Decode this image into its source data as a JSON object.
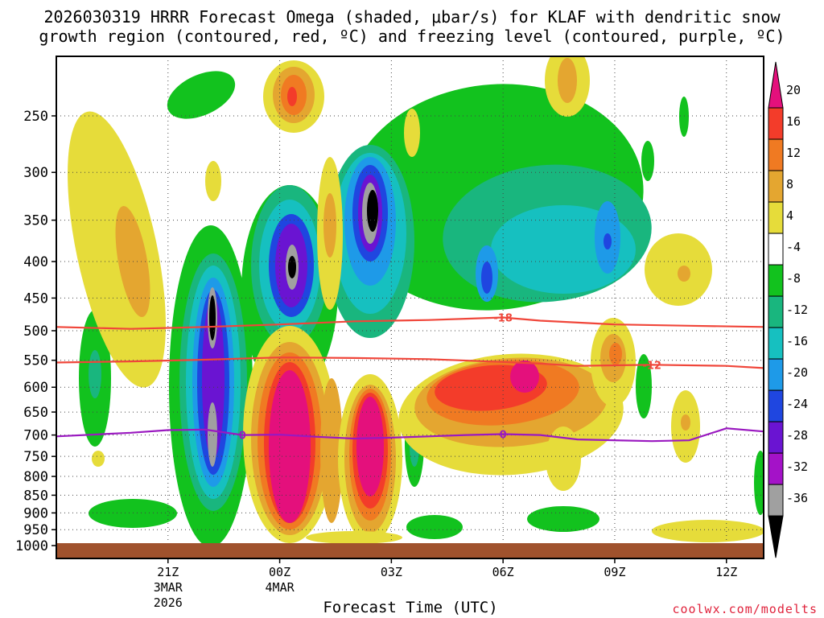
{
  "title": {
    "line1": "2026030319 HRRR Forecast Omega (shaded, μbar/s) for KLAF with dendritic snow",
    "line2": "growth region (contoured, red, ºC) and freezing level (contoured, purple, ºC)"
  },
  "x_axis_title": "Forecast Time (UTC)",
  "credit": "coolwx.com/modelts",
  "chart_data": {
    "type": "heatmap",
    "x_ticks": [
      {
        "label": "21Z",
        "sub1": "3MAR",
        "sub2": "2026",
        "hour": 21
      },
      {
        "label": "00Z",
        "sub1": "4MAR",
        "sub2": "",
        "hour": 24
      },
      {
        "label": "03Z",
        "sub1": "",
        "sub2": "",
        "hour": 27
      },
      {
        "label": "06Z",
        "sub1": "",
        "sub2": "",
        "hour": 30
      },
      {
        "label": "09Z",
        "sub1": "",
        "sub2": "",
        "hour": 33
      },
      {
        "label": "12Z",
        "sub1": "",
        "sub2": "",
        "hour": 36
      }
    ],
    "x_range_hours": [
      18,
      37
    ],
    "y_ticks": [
      "250",
      "300",
      "350",
      "400",
      "450",
      "500",
      "550",
      "600",
      "650",
      "700",
      "750",
      "800",
      "850",
      "900",
      "950",
      "1000"
    ],
    "y_range_hpa": [
      1000,
      200
    ],
    "colorbar": {
      "labels": [
        "20",
        "16",
        "12",
        "8",
        "4",
        "-4",
        "-8",
        "-12",
        "-16",
        "-20",
        "-24",
        "-28",
        "-32",
        "-36"
      ],
      "colors": [
        "#e4107c",
        "#f33c2a",
        "#f07a22",
        "#e4a630",
        "#e6dc3a",
        "#ffffff",
        "#12c21e",
        "#19b67e",
        "#16c0c0",
        "#1e9ae8",
        "#1f46e0",
        "#6a14d2",
        "#a412c8",
        "#a0a0a0",
        "#000000"
      ]
    },
    "contours": [
      {
        "label": "-18",
        "color": "#f0463a",
        "points": [
          [
            18,
            494
          ],
          [
            20,
            497
          ],
          [
            22,
            494
          ],
          [
            24,
            490
          ],
          [
            26,
            485
          ],
          [
            27,
            484
          ],
          [
            28,
            483
          ],
          [
            29,
            481
          ],
          [
            30,
            479
          ],
          [
            31,
            484
          ],
          [
            33,
            490
          ],
          [
            35,
            492
          ],
          [
            37,
            494
          ]
        ]
      },
      {
        "label": "-12",
        "color": "#f0463a",
        "points": [
          [
            18,
            554
          ],
          [
            20,
            552
          ],
          [
            22,
            549
          ],
          [
            24,
            545
          ],
          [
            26,
            546
          ],
          [
            28,
            548
          ],
          [
            30,
            553
          ],
          [
            31,
            556
          ],
          [
            32,
            560
          ],
          [
            34,
            558
          ],
          [
            36,
            560
          ],
          [
            37,
            564
          ]
        ]
      },
      {
        "label": "0",
        "color": "#9a19c0",
        "points": [
          [
            18,
            703
          ],
          [
            20,
            695
          ],
          [
            21,
            689
          ],
          [
            22,
            688
          ],
          [
            23,
            700
          ],
          [
            24,
            699
          ],
          [
            25,
            704
          ],
          [
            26,
            708
          ],
          [
            27,
            706
          ],
          [
            28,
            703
          ],
          [
            29,
            700
          ],
          [
            30,
            698
          ],
          [
            31,
            700
          ],
          [
            32,
            710
          ],
          [
            34,
            714
          ],
          [
            35,
            712
          ],
          [
            36,
            685
          ],
          [
            37,
            692
          ]
        ]
      }
    ],
    "shaded_blobs_note": "omega magnitudes in μbar/s"
  }
}
